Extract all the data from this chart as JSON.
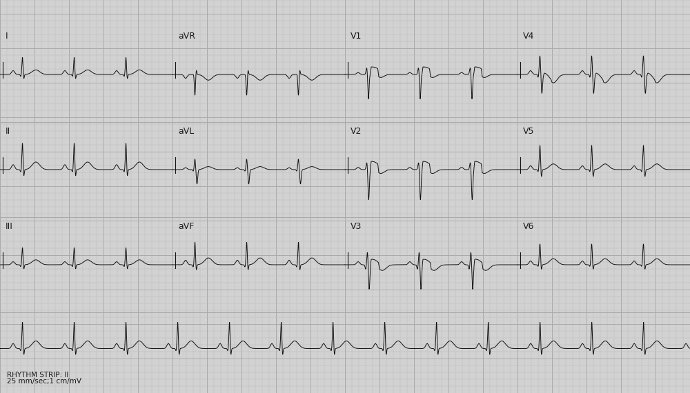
{
  "bg_color": "#d2d2d2",
  "grid_minor_color": "#bcbcbc",
  "grid_major_color": "#aaaaaa",
  "ecg_color": "#111111",
  "text_color": "#1a1a1a",
  "rhythm_text": "RHYTHM STRIP: II",
  "calibration_text": "25 mm/sec;1 cm/mV",
  "figsize": [
    10.0,
    5.7
  ],
  "dpi": 100,
  "lead_layout": [
    [
      "I",
      "aVR",
      "V1",
      "V4"
    ],
    [
      "II",
      "aVL",
      "V2",
      "V5"
    ],
    [
      "III",
      "aVF",
      "V3",
      "V6"
    ]
  ]
}
